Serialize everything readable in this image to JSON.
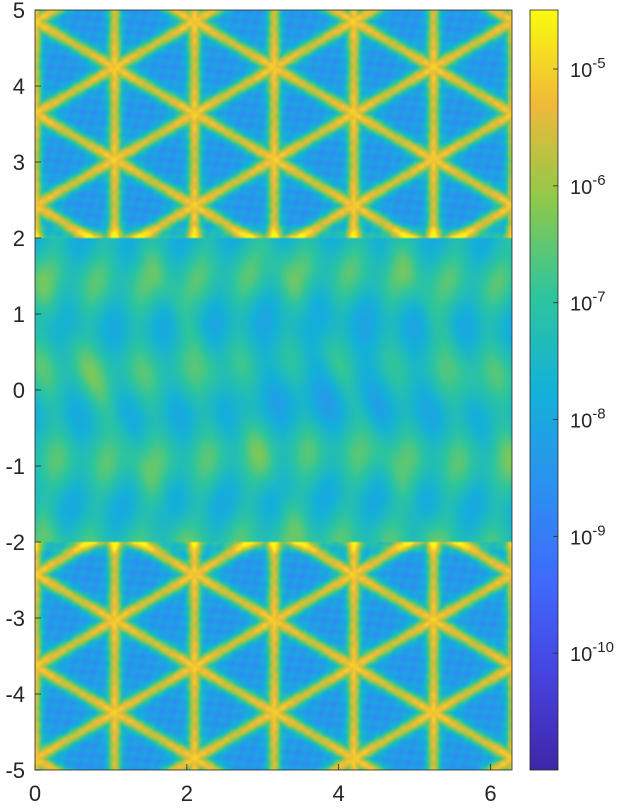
{
  "chart_data": {
    "type": "heatmap",
    "title": "",
    "xlabel": "",
    "ylabel": "",
    "xlim": [
      0,
      6.2832
    ],
    "ylim": [
      -5,
      5
    ],
    "x_ticks": [
      0,
      2,
      4,
      6
    ],
    "x_tick_labels": [
      "0",
      "2",
      "4",
      "6"
    ],
    "y_ticks": [
      5,
      4,
      3,
      2,
      1,
      0,
      -1,
      -2,
      -3,
      -4,
      -5
    ],
    "y_tick_labels": [
      "5",
      "4",
      "3",
      "2",
      "1",
      "0",
      "-1",
      "-2",
      "-3",
      "-4",
      "-5"
    ],
    "colorbar": {
      "scale": "log",
      "colormap": "parula",
      "clim": [
        1e-11,
        3.2e-05
      ],
      "ticks": [
        1e-10,
        1e-09,
        1e-08,
        1e-07,
        1e-06,
        1e-05
      ],
      "tick_labels": [
        "10-10",
        "10-9",
        "10-8",
        "10-7",
        "10-6",
        "10-5"
      ],
      "tick_bases": [
        "10",
        "10",
        "10",
        "10",
        "10",
        "10"
      ],
      "tick_exponents": [
        "-10",
        "-9",
        "-8",
        "-7",
        "-6",
        "-5"
      ]
    },
    "regions": [
      {
        "y_range": [
          2,
          5
        ],
        "texture": "triangular lattice of bright ridges",
        "value_range": [
          1e-08,
          5e-06
        ]
      },
      {
        "y_range": [
          -2,
          2
        ],
        "texture": "smooth banded ripples",
        "value_range": [
          1e-09,
          2e-07
        ]
      },
      {
        "y_range": [
          -5,
          -2
        ],
        "texture": "triangular lattice of bright ridges",
        "value_range": [
          1e-08,
          5e-06
        ]
      }
    ],
    "grid": false,
    "legend": "none"
  }
}
